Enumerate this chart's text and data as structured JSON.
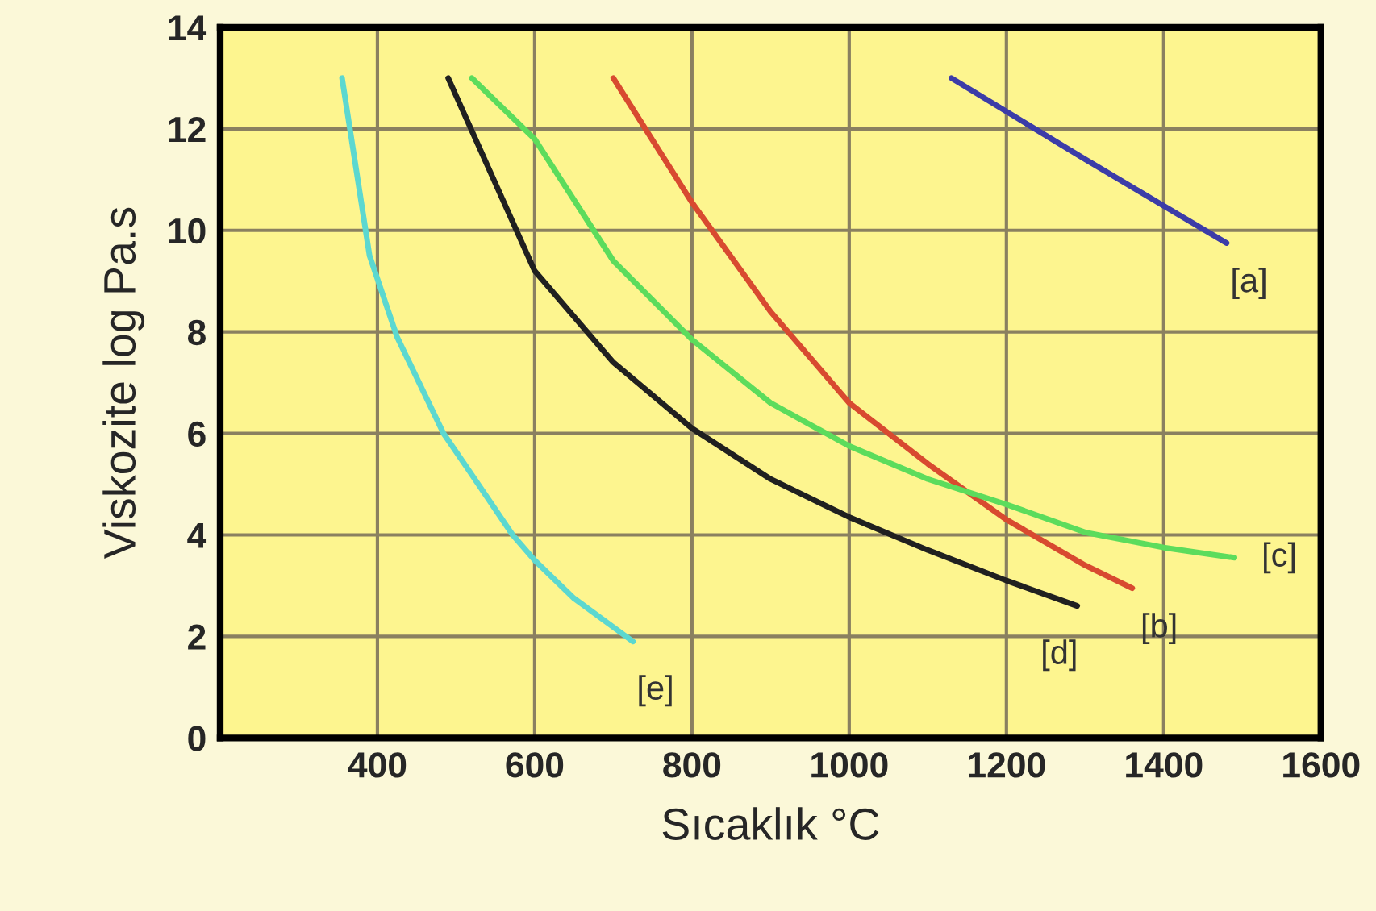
{
  "chart_data": {
    "type": "line",
    "xlabel": "Sıcaklık °C",
    "ylabel": "Viskozite log Pa.s",
    "xlim": [
      200,
      1600
    ],
    "xticks": [
      400,
      600,
      800,
      1000,
      1200,
      1400,
      1600
    ],
    "ylim": [
      0,
      14
    ],
    "yticks": [
      0,
      2,
      4,
      6,
      8,
      10,
      12,
      14
    ],
    "grid": true,
    "legend": false,
    "marker": "none",
    "line_style": "solid",
    "series": [
      {
        "name": "[a]",
        "color": "#3c3ca8",
        "x": [
          1130,
          1300,
          1480
        ],
        "values": [
          13,
          11.4,
          9.75
        ]
      },
      {
        "name": "[b]",
        "color": "#d84a30",
        "x": [
          700,
          800,
          900,
          1000,
          1100,
          1200,
          1300,
          1360
        ],
        "values": [
          13,
          10.55,
          8.4,
          6.6,
          5.4,
          4.3,
          3.4,
          2.95
        ]
      },
      {
        "name": "[c]",
        "color": "#5cdc5c",
        "x": [
          520,
          600,
          700,
          800,
          900,
          1000,
          1100,
          1200,
          1300,
          1400,
          1490
        ],
        "values": [
          13,
          11.8,
          9.4,
          7.85,
          6.6,
          5.75,
          5.1,
          4.6,
          4.05,
          3.75,
          3.55
        ]
      },
      {
        "name": "[d]",
        "color": "#202020",
        "x": [
          490,
          600,
          700,
          800,
          900,
          1000,
          1100,
          1200,
          1290
        ],
        "values": [
          13,
          9.2,
          7.4,
          6.1,
          5.1,
          4.35,
          3.7,
          3.1,
          2.6
        ]
      },
      {
        "name": "[e]",
        "color": "#5cd8d0",
        "x": [
          355,
          370,
          390,
          425,
          484,
          515,
          572,
          600,
          650,
          725
        ],
        "values": [
          13,
          11.5,
          9.5,
          7.9,
          6,
          5.3,
          4,
          3.5,
          2.75,
          1.9
        ]
      }
    ]
  }
}
